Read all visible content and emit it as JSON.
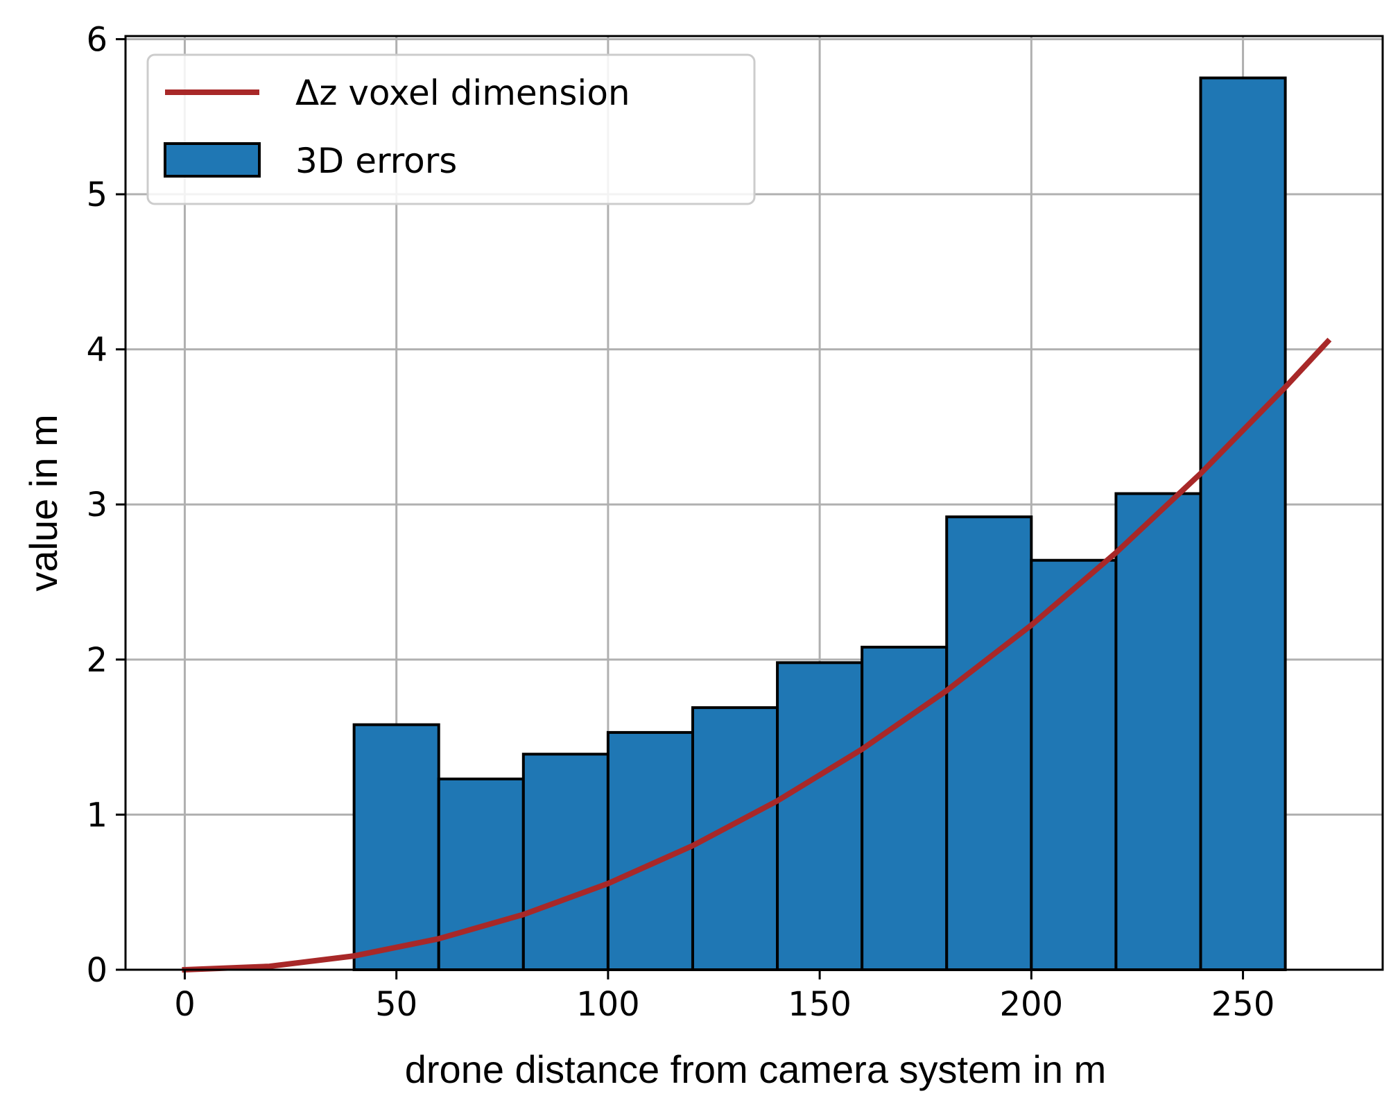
{
  "colors": {
    "bars": "#1f77b4",
    "curve": "#a82828",
    "grid": "#b0b0b0"
  },
  "chart_data": {
    "type": "bar",
    "xlabel": "drone distance from camera system in m",
    "ylabel": "value in m",
    "xlim": [
      -14,
      283
    ],
    "ylim": [
      0,
      6.02
    ],
    "grid": true,
    "legend_position": "top-left",
    "x_ticks": [
      0,
      50,
      100,
      150,
      200,
      250
    ],
    "y_ticks": [
      0,
      1,
      2,
      3,
      4,
      5,
      6
    ],
    "bins": [
      {
        "x0": 40,
        "x1": 60,
        "value": 1.58
      },
      {
        "x0": 60,
        "x1": 80,
        "value": 1.23
      },
      {
        "x0": 80,
        "x1": 100,
        "value": 1.39
      },
      {
        "x0": 100,
        "x1": 120,
        "value": 1.53
      },
      {
        "x0": 120,
        "x1": 140,
        "value": 1.69
      },
      {
        "x0": 140,
        "x1": 160,
        "value": 1.98
      },
      {
        "x0": 160,
        "x1": 180,
        "value": 2.08
      },
      {
        "x0": 180,
        "x1": 200,
        "value": 2.92
      },
      {
        "x0": 200,
        "x1": 220,
        "value": 2.64
      },
      {
        "x0": 220,
        "x1": 240,
        "value": 3.07
      },
      {
        "x0": 240,
        "x1": 260,
        "value": 5.75
      }
    ],
    "series": [
      {
        "name": "3D errors",
        "kind": "bar"
      },
      {
        "name": "Δz voxel dimension",
        "kind": "line",
        "x": [
          0,
          20,
          40,
          60,
          80,
          100,
          120,
          140,
          160,
          180,
          200,
          220,
          240,
          260,
          270
        ],
        "y": [
          0,
          0.022,
          0.089,
          0.2,
          0.356,
          0.556,
          0.8,
          1.089,
          1.422,
          1.8,
          2.222,
          2.689,
          3.2,
          3.756,
          4.05
        ]
      }
    ]
  }
}
